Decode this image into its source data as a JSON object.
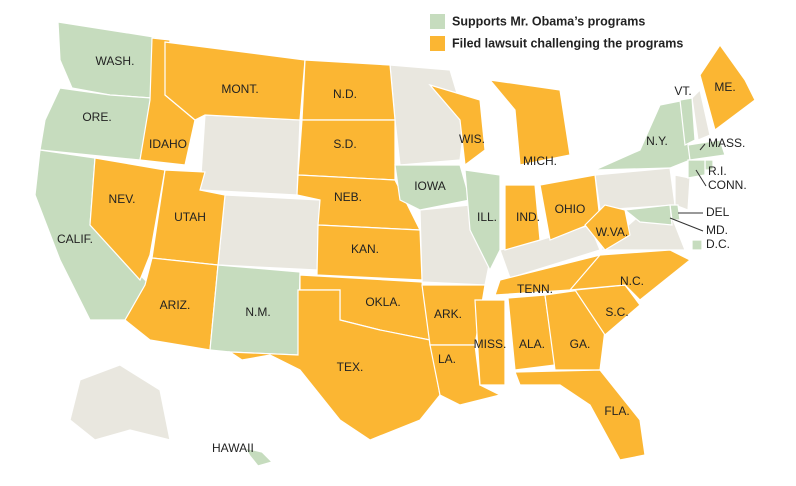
{
  "legend": [
    {
      "label": "Supports Mr. Obama’s programs",
      "color": "#c6dcbe"
    },
    {
      "label": "Filed lawsuit challenging the programs",
      "color": "#fbb633"
    }
  ],
  "states": [
    {
      "label": "WASH.",
      "group": 0
    },
    {
      "label": "ORE.",
      "group": 0
    },
    {
      "label": "CALIF.",
      "group": 0
    },
    {
      "label": "IDAHO",
      "group": 1
    },
    {
      "label": "NEV.",
      "group": 1
    },
    {
      "label": "MONT.",
      "group": 1
    },
    {
      "label": "UTAH",
      "group": 1
    },
    {
      "label": "ARIZ.",
      "group": 1
    },
    {
      "label": "N.M.",
      "group": 0
    },
    {
      "label": "N.D.",
      "group": 1
    },
    {
      "label": "S.D.",
      "group": 1
    },
    {
      "label": "NEB.",
      "group": 1
    },
    {
      "label": "KAN.",
      "group": 1
    },
    {
      "label": "OKLA.",
      "group": 1
    },
    {
      "label": "TEX.",
      "group": 1
    },
    {
      "label": "IOWA",
      "group": 0
    },
    {
      "label": "ARK.",
      "group": 1
    },
    {
      "label": "LA.",
      "group": 1
    },
    {
      "label": "WIS.",
      "group": 1
    },
    {
      "label": "ILL.",
      "group": 0
    },
    {
      "label": "MICH.",
      "group": 1
    },
    {
      "label": "IND.",
      "group": 1
    },
    {
      "label": "OHIO",
      "group": 1
    },
    {
      "label": "TENN.",
      "group": 1
    },
    {
      "label": "MISS.",
      "group": 1
    },
    {
      "label": "ALA.",
      "group": 1
    },
    {
      "label": "GA.",
      "group": 1
    },
    {
      "label": "FLA.",
      "group": 1
    },
    {
      "label": "S.C.",
      "group": 1
    },
    {
      "label": "N.C.",
      "group": 1
    },
    {
      "label": "W.VA.",
      "group": 1
    },
    {
      "label": "N.Y.",
      "group": 0
    },
    {
      "label": "VT.",
      "group": 0
    },
    {
      "label": "ME.",
      "group": 1
    },
    {
      "label": "MASS.",
      "group": 0
    },
    {
      "label": "R.I.",
      "group": 0
    },
    {
      "label": "CONN.",
      "group": 0
    },
    {
      "label": "DEL",
      "group": 0
    },
    {
      "label": "MD.",
      "group": 0
    },
    {
      "label": "D.C.",
      "group": 0
    },
    {
      "label": "HAWAII",
      "group": 0
    }
  ]
}
